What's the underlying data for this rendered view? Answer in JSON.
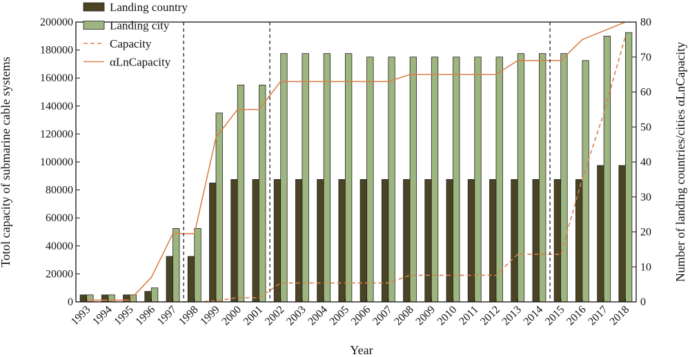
{
  "chart_data": {
    "type": "bar",
    "xlabel": "Year",
    "ylabel_left": "Totol capacity of submarine cable systems",
    "ylabel_right": "Number of landing countries/cities αLnCapacity",
    "ylim_left": [
      0,
      200000
    ],
    "ylim_right": [
      0,
      80
    ],
    "yticks_left": [
      0,
      20000,
      40000,
      60000,
      80000,
      100000,
      120000,
      140000,
      160000,
      180000,
      200000
    ],
    "yticks_right": [
      0,
      10,
      20,
      30,
      40,
      50,
      60,
      70,
      80
    ],
    "categories": [
      "1993",
      "1994",
      "1995",
      "1996",
      "1997",
      "1998",
      "1999",
      "2000",
      "2001",
      "2002",
      "2003",
      "2004",
      "2005",
      "2006",
      "2007",
      "2008",
      "2009",
      "2010",
      "2011",
      "2012",
      "2013",
      "2014",
      "2015",
      "2016",
      "2017",
      "2018"
    ],
    "vertical_markers": [
      "1998",
      "2002",
      "2015"
    ],
    "legend_position": "top-left",
    "series": [
      {
        "name": "Landing country",
        "kind": "bar",
        "axis": "right",
        "color": "#4a4324",
        "values": [
          2,
          2,
          2,
          3,
          13,
          13,
          34,
          35,
          35,
          35,
          35,
          35,
          35,
          35,
          35,
          35,
          35,
          35,
          35,
          35,
          35,
          35,
          35,
          35,
          39,
          39
        ]
      },
      {
        "name": "Landing city",
        "kind": "bar",
        "axis": "right",
        "color": "#9db57f",
        "values": [
          2,
          2,
          2,
          4,
          21,
          21,
          54,
          62,
          62,
          71,
          71,
          71,
          71,
          70,
          70,
          70,
          70,
          70,
          70,
          70,
          71,
          71,
          71,
          69,
          76,
          77
        ]
      },
      {
        "name": "Capacity",
        "kind": "dashed-line",
        "axis": "left",
        "color": "#d9804a",
        "values": [
          0,
          0,
          0,
          0,
          0,
          0,
          700,
          3000,
          3000,
          13500,
          13500,
          13500,
          13500,
          13500,
          13500,
          19000,
          19000,
          19000,
          19000,
          19000,
          34000,
          34000,
          34000,
          88000,
          135000,
          190000
        ]
      },
      {
        "name": "αLnCapacity",
        "kind": "line",
        "axis": "right",
        "color": "#d9804a",
        "values": [
          0.5,
          0.5,
          0.5,
          7,
          19.5,
          19.5,
          47,
          55,
          55,
          63,
          63,
          63,
          63,
          63,
          63,
          65,
          65,
          65,
          65,
          65,
          69,
          69,
          69,
          75,
          77.5,
          80
        ]
      }
    ]
  }
}
